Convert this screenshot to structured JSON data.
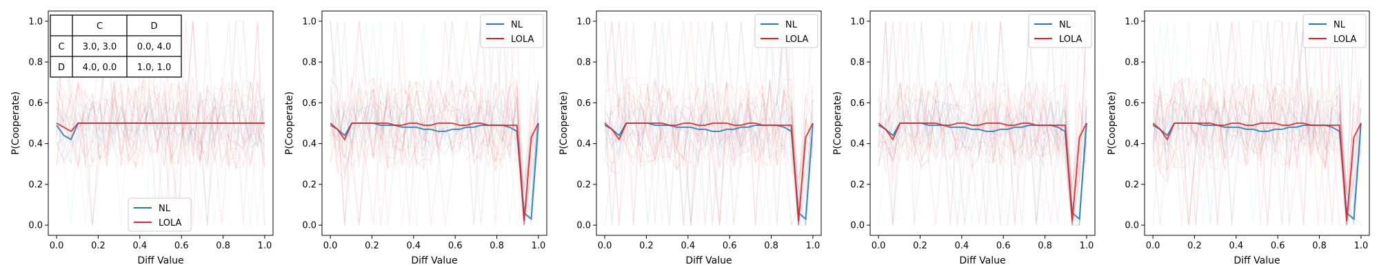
{
  "chart_data": [
    {
      "type": "line",
      "xlabel": "Diff Value",
      "ylabel": "P(Cooperate)",
      "xlim": [
        -0.04,
        1.04
      ],
      "ylim": [
        -0.05,
        1.05
      ],
      "xticks": [
        "0.0",
        "0.2",
        "0.4",
        "0.6",
        "0.8",
        "1.0"
      ],
      "yticks": [
        "0.0",
        "0.2",
        "0.4",
        "0.6",
        "0.8",
        "1.0"
      ],
      "legend": {
        "position": "lower-center"
      },
      "payoff_table": {
        "columns": [
          "C",
          "D"
        ],
        "rows": [
          {
            "label": "C",
            "cells": [
              "3.0, 3.0",
              "0.0, 4.0"
            ]
          },
          {
            "label": "D",
            "cells": [
              "4.0, 0.0",
              "1.0, 1.0"
            ]
          }
        ]
      },
      "x": [
        0.0,
        0.0345,
        0.069,
        0.1034,
        0.1379,
        0.1724,
        0.2069,
        0.2414,
        0.2759,
        0.3103,
        0.3448,
        0.3793,
        0.4138,
        0.4483,
        0.4828,
        0.5172,
        0.5517,
        0.5862,
        0.6207,
        0.6552,
        0.6897,
        0.7241,
        0.7586,
        0.7931,
        0.8276,
        0.8621,
        0.8966,
        0.931,
        0.9655,
        1.0
      ],
      "series": [
        {
          "name": "NL",
          "color": "#1f77b4",
          "values": [
            0.49,
            0.44,
            0.42,
            0.5,
            0.5,
            0.5,
            0.5,
            0.5,
            0.5,
            0.5,
            0.5,
            0.5,
            0.5,
            0.5,
            0.5,
            0.5,
            0.5,
            0.5,
            0.5,
            0.5,
            0.5,
            0.5,
            0.5,
            0.5,
            0.5,
            0.5,
            0.5,
            0.5,
            0.5,
            0.5
          ]
        },
        {
          "name": "LOLA",
          "color": "#d62728",
          "values": [
            0.5,
            0.48,
            0.46,
            0.5,
            0.5,
            0.5,
            0.5,
            0.5,
            0.5,
            0.5,
            0.5,
            0.5,
            0.5,
            0.5,
            0.5,
            0.5,
            0.5,
            0.5,
            0.5,
            0.5,
            0.5,
            0.5,
            0.5,
            0.5,
            0.5,
            0.5,
            0.5,
            0.5,
            0.5,
            0.5
          ]
        }
      ]
    },
    {
      "type": "line",
      "xlabel": "Diff Value",
      "ylabel": "P(Cooperate)",
      "xlim": [
        -0.04,
        1.04
      ],
      "ylim": [
        -0.05,
        1.05
      ],
      "xticks": [
        "0.0",
        "0.2",
        "0.4",
        "0.6",
        "0.8",
        "1.0"
      ],
      "yticks": [
        "0.0",
        "0.2",
        "0.4",
        "0.6",
        "0.8",
        "1.0"
      ],
      "legend": {
        "position": "top-right"
      },
      "x": [
        0.0,
        0.0345,
        0.069,
        0.1034,
        0.1379,
        0.1724,
        0.2069,
        0.2414,
        0.2759,
        0.3103,
        0.3448,
        0.3793,
        0.4138,
        0.4483,
        0.4828,
        0.5172,
        0.5517,
        0.5862,
        0.6207,
        0.6552,
        0.6897,
        0.7241,
        0.7586,
        0.7931,
        0.8276,
        0.8621,
        0.8966,
        0.931,
        0.9655,
        1.0
      ],
      "series": [
        {
          "name": "NL",
          "color": "#1f77b4",
          "values": [
            0.49,
            0.47,
            0.44,
            0.5,
            0.5,
            0.5,
            0.5,
            0.49,
            0.49,
            0.49,
            0.48,
            0.48,
            0.48,
            0.47,
            0.47,
            0.46,
            0.46,
            0.47,
            0.47,
            0.48,
            0.48,
            0.49,
            0.49,
            0.49,
            0.49,
            0.48,
            0.46,
            0.06,
            0.03,
            0.5
          ]
        },
        {
          "name": "LOLA",
          "color": "#d62728",
          "values": [
            0.5,
            0.47,
            0.42,
            0.5,
            0.5,
            0.5,
            0.5,
            0.5,
            0.5,
            0.49,
            0.49,
            0.5,
            0.5,
            0.49,
            0.49,
            0.5,
            0.5,
            0.5,
            0.49,
            0.49,
            0.5,
            0.5,
            0.49,
            0.49,
            0.49,
            0.49,
            0.49,
            0.02,
            0.43,
            0.5
          ]
        }
      ]
    },
    {
      "type": "line",
      "xlabel": "Diff Value",
      "ylabel": "P(Cooperate)",
      "xlim": [
        -0.04,
        1.04
      ],
      "ylim": [
        -0.05,
        1.05
      ],
      "xticks": [
        "0.0",
        "0.2",
        "0.4",
        "0.6",
        "0.8",
        "1.0"
      ],
      "yticks": [
        "0.0",
        "0.2",
        "0.4",
        "0.6",
        "0.8",
        "1.0"
      ],
      "legend": {
        "position": "top-right"
      },
      "x": [
        0.0,
        0.0345,
        0.069,
        0.1034,
        0.1379,
        0.1724,
        0.2069,
        0.2414,
        0.2759,
        0.3103,
        0.3448,
        0.3793,
        0.4138,
        0.4483,
        0.4828,
        0.5172,
        0.5517,
        0.5862,
        0.6207,
        0.6552,
        0.6897,
        0.7241,
        0.7586,
        0.7931,
        0.8276,
        0.8621,
        0.8966,
        0.931,
        0.9655,
        1.0
      ],
      "series": [
        {
          "name": "NL",
          "color": "#1f77b4",
          "values": [
            0.49,
            0.47,
            0.44,
            0.5,
            0.5,
            0.5,
            0.5,
            0.49,
            0.49,
            0.49,
            0.48,
            0.48,
            0.48,
            0.47,
            0.47,
            0.46,
            0.46,
            0.47,
            0.47,
            0.48,
            0.48,
            0.49,
            0.49,
            0.49,
            0.49,
            0.48,
            0.46,
            0.06,
            0.03,
            0.5
          ]
        },
        {
          "name": "LOLA",
          "color": "#d62728",
          "values": [
            0.5,
            0.47,
            0.42,
            0.5,
            0.5,
            0.5,
            0.5,
            0.5,
            0.5,
            0.49,
            0.49,
            0.5,
            0.5,
            0.49,
            0.49,
            0.5,
            0.5,
            0.5,
            0.49,
            0.49,
            0.5,
            0.5,
            0.49,
            0.49,
            0.49,
            0.49,
            0.49,
            0.02,
            0.43,
            0.5
          ]
        }
      ]
    },
    {
      "type": "line",
      "xlabel": "Diff Value",
      "ylabel": "P(Cooperate)",
      "xlim": [
        -0.04,
        1.04
      ],
      "ylim": [
        -0.05,
        1.05
      ],
      "xticks": [
        "0.0",
        "0.2",
        "0.4",
        "0.6",
        "0.8",
        "1.0"
      ],
      "yticks": [
        "0.0",
        "0.2",
        "0.4",
        "0.6",
        "0.8",
        "1.0"
      ],
      "legend": {
        "position": "top-right"
      },
      "x": [
        0.0,
        0.0345,
        0.069,
        0.1034,
        0.1379,
        0.1724,
        0.2069,
        0.2414,
        0.2759,
        0.3103,
        0.3448,
        0.3793,
        0.4138,
        0.4483,
        0.4828,
        0.5172,
        0.5517,
        0.5862,
        0.6207,
        0.6552,
        0.6897,
        0.7241,
        0.7586,
        0.7931,
        0.8276,
        0.8621,
        0.8966,
        0.931,
        0.9655,
        1.0
      ],
      "series": [
        {
          "name": "NL",
          "color": "#1f77b4",
          "values": [
            0.49,
            0.47,
            0.44,
            0.5,
            0.5,
            0.5,
            0.5,
            0.49,
            0.49,
            0.49,
            0.48,
            0.48,
            0.48,
            0.47,
            0.47,
            0.46,
            0.46,
            0.47,
            0.47,
            0.48,
            0.48,
            0.49,
            0.49,
            0.49,
            0.49,
            0.48,
            0.46,
            0.06,
            0.03,
            0.5
          ]
        },
        {
          "name": "LOLA",
          "color": "#d62728",
          "values": [
            0.5,
            0.47,
            0.42,
            0.5,
            0.5,
            0.5,
            0.5,
            0.5,
            0.5,
            0.49,
            0.49,
            0.5,
            0.5,
            0.49,
            0.49,
            0.5,
            0.5,
            0.5,
            0.49,
            0.49,
            0.5,
            0.5,
            0.49,
            0.49,
            0.49,
            0.49,
            0.49,
            0.02,
            0.43,
            0.5
          ]
        }
      ]
    },
    {
      "type": "line",
      "xlabel": "Diff Value",
      "ylabel": "P(Cooperate)",
      "xlim": [
        -0.04,
        1.04
      ],
      "ylim": [
        -0.05,
        1.05
      ],
      "xticks": [
        "0.0",
        "0.2",
        "0.4",
        "0.6",
        "0.8",
        "1.0"
      ],
      "yticks": [
        "0.0",
        "0.2",
        "0.4",
        "0.6",
        "0.8",
        "1.0"
      ],
      "legend": {
        "position": "top-right"
      },
      "x": [
        0.0,
        0.0345,
        0.069,
        0.1034,
        0.1379,
        0.1724,
        0.2069,
        0.2414,
        0.2759,
        0.3103,
        0.3448,
        0.3793,
        0.4138,
        0.4483,
        0.4828,
        0.5172,
        0.5517,
        0.5862,
        0.6207,
        0.6552,
        0.6897,
        0.7241,
        0.7586,
        0.7931,
        0.8276,
        0.8621,
        0.8966,
        0.931,
        0.9655,
        1.0
      ],
      "series": [
        {
          "name": "NL",
          "color": "#1f77b4",
          "values": [
            0.49,
            0.47,
            0.44,
            0.5,
            0.5,
            0.5,
            0.5,
            0.49,
            0.49,
            0.49,
            0.48,
            0.48,
            0.48,
            0.47,
            0.47,
            0.46,
            0.46,
            0.47,
            0.47,
            0.48,
            0.48,
            0.49,
            0.49,
            0.49,
            0.49,
            0.48,
            0.46,
            0.06,
            0.03,
            0.5
          ]
        },
        {
          "name": "LOLA",
          "color": "#d62728",
          "values": [
            0.5,
            0.47,
            0.42,
            0.5,
            0.5,
            0.5,
            0.5,
            0.5,
            0.5,
            0.49,
            0.49,
            0.5,
            0.5,
            0.49,
            0.49,
            0.5,
            0.5,
            0.5,
            0.49,
            0.49,
            0.5,
            0.5,
            0.49,
            0.49,
            0.49,
            0.49,
            0.49,
            0.02,
            0.43,
            0.5
          ]
        }
      ]
    }
  ]
}
